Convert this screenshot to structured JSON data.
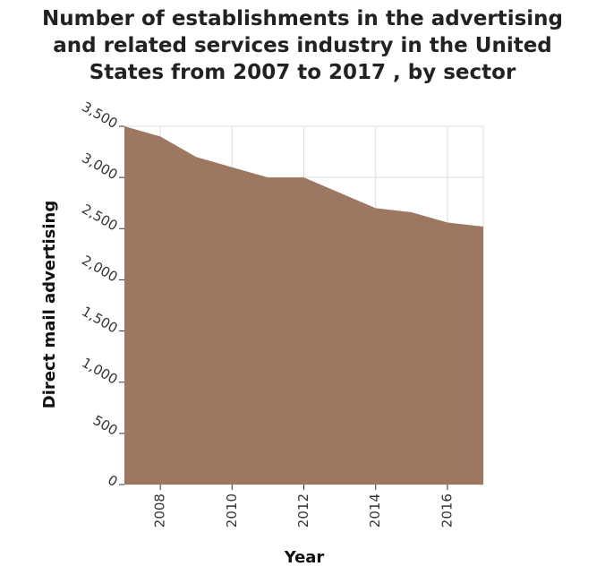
{
  "title_lines": [
    "Number of establishments in the advertising",
    "and related services industry in the United",
    "States from 2007 to 2017 , by sector"
  ],
  "chart_data": {
    "type": "area",
    "title": "Number of establishments in the advertising and related services industry in the United States from 2007 to 2017 , by sector",
    "xlabel": "Year",
    "ylabel": "Direct mail advertising",
    "x": [
      2007,
      2008,
      2009,
      2010,
      2011,
      2012,
      2013,
      2014,
      2015,
      2016,
      2017
    ],
    "series": [
      {
        "name": "Direct mail advertising",
        "values": [
          3500,
          3400,
          3200,
          3100,
          3000,
          3000,
          2850,
          2700,
          2660,
          2560,
          2520
        ],
        "color": "#9c7862"
      }
    ],
    "xlim": [
      2007,
      2017
    ],
    "ylim": [
      0,
      3500
    ],
    "xticks": [
      2008,
      2010,
      2012,
      2014,
      2016
    ],
    "xtick_labels": [
      "2008",
      "2010",
      "2012",
      "2014",
      "2016"
    ],
    "yticks": [
      0,
      500,
      1000,
      1500,
      2000,
      2500,
      3000,
      3500
    ],
    "ytick_labels": [
      "0",
      "500",
      "1,000",
      "1,500",
      "2,000",
      "2,500",
      "3,000",
      "3,500"
    ],
    "grid": true,
    "plot_background": "#ffffff",
    "grid_color": "#dddddd"
  }
}
